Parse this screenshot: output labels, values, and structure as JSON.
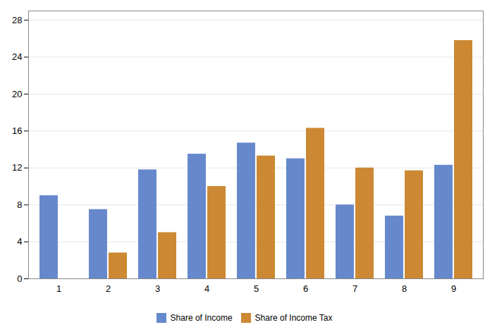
{
  "chart_data": {
    "type": "bar",
    "categories": [
      1,
      2,
      3,
      4,
      5,
      6,
      7,
      8,
      9
    ],
    "series": [
      {
        "name": "Share of Income",
        "color": "#6688CC",
        "values": [
          9.0,
          7.5,
          11.8,
          13.5,
          14.7,
          13.0,
          8.0,
          6.8,
          12.3
        ]
      },
      {
        "name": "Share of Income Tax",
        "color": "#CC8833",
        "values": [
          0,
          2.8,
          5.0,
          10.0,
          13.3,
          16.3,
          12.0,
          11.7,
          25.8
        ]
      }
    ],
    "ylim": [
      0,
      29
    ],
    "yticks": [
      0,
      4,
      8,
      12,
      16,
      20,
      24,
      28
    ],
    "grid": true,
    "legend": "bottom"
  }
}
